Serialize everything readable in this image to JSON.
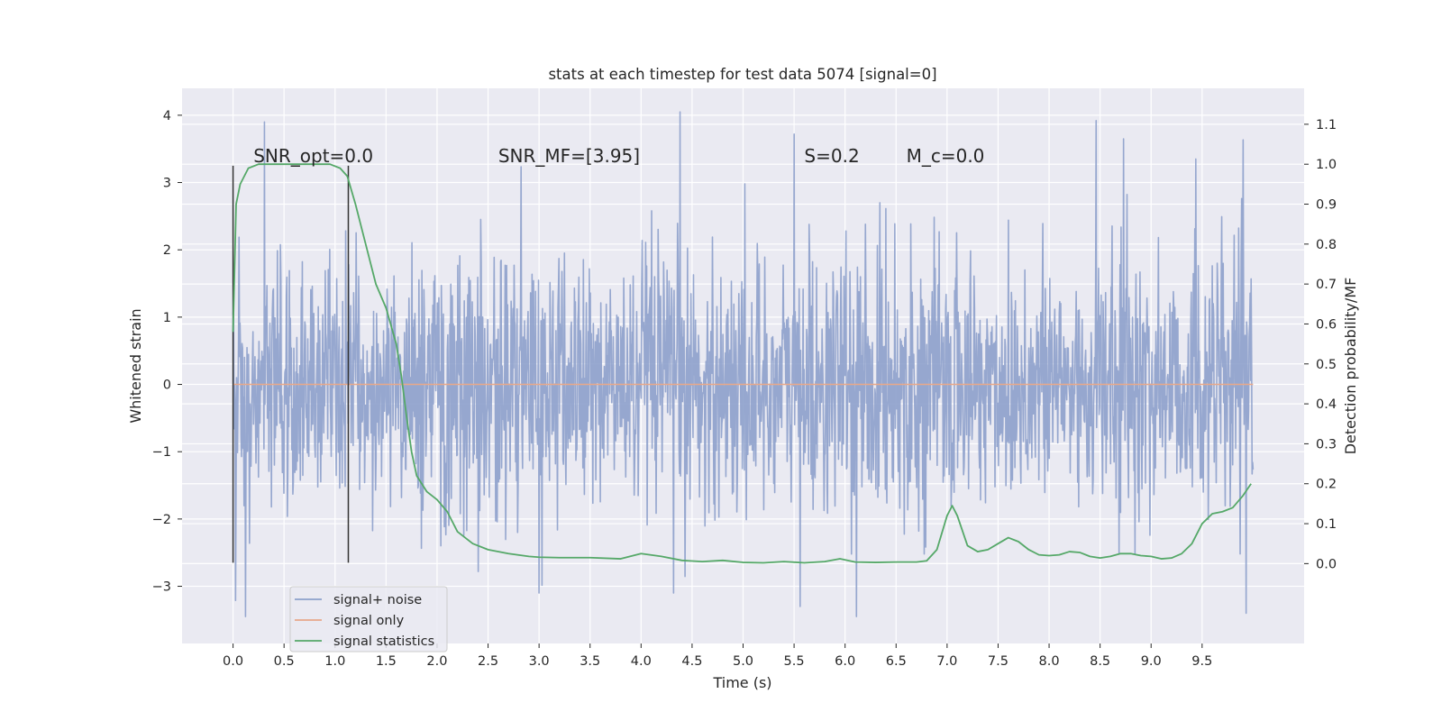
{
  "chart_data": {
    "type": "line",
    "title": "stats at each timestep for test data 5074 [signal=0]",
    "xlabel": "Time (s)",
    "ylabel": "Whitened strain",
    "y2label": "Detection probability/MF",
    "xlim": [
      -0.5,
      10.5
    ],
    "ylim": [
      -3.85,
      4.4
    ],
    "y2lim": [
      -0.2,
      1.19
    ],
    "x_ticks": [
      "0.0",
      "0.5",
      "1.0",
      "1.5",
      "2.0",
      "2.5",
      "3.0",
      "3.5",
      "4.0",
      "4.5",
      "5.0",
      "5.5",
      "6.0",
      "6.5",
      "7.0",
      "7.5",
      "8.0",
      "8.5",
      "9.0",
      "9.5"
    ],
    "y_ticks": [
      "−3",
      "−2",
      "−1",
      "0",
      "1",
      "2",
      "3",
      "4"
    ],
    "y2_ticks": [
      "0.0",
      "0.1",
      "0.2",
      "0.3",
      "0.4",
      "0.5",
      "0.6",
      "0.7",
      "0.8",
      "0.9",
      "1.0",
      "1.1"
    ],
    "grid": true,
    "legend_placement": "lower-left",
    "annotations": [
      {
        "text": "SNR_opt=0.0",
        "x": 0.2,
        "y": 3.3
      },
      {
        "text": "SNR_MF=[3.95]",
        "x": 2.6,
        "y": 3.3
      },
      {
        "text": "S=0.2",
        "x": 5.6,
        "y": 3.3
      },
      {
        "text": "M_c=0.0",
        "x": 6.6,
        "y": 3.3
      }
    ],
    "vlines": [
      {
        "x": 0.0,
        "ymin": -2.65,
        "ymax": 3.25
      },
      {
        "x": 1.13,
        "ymin": -2.65,
        "ymax": 3.25
      }
    ],
    "series": [
      {
        "name": "signal+ noise",
        "color": "#8da0cb",
        "axis": "left",
        "x_range": [
          0,
          10
        ],
        "samples": 2048,
        "envelope_typical": [
          -1.5,
          1.5
        ],
        "max": 4.05,
        "min": -3.45,
        "note_peaks": [
          {
            "x": 0.31,
            "y": 3.9
          },
          {
            "x": 4.38,
            "y": 4.05
          },
          {
            "x": 8.46,
            "y": 3.92
          },
          {
            "x": 5.5,
            "y": 3.72
          },
          {
            "x": 8.73,
            "y": 3.65
          },
          {
            "x": 9.44,
            "y": 3.35
          },
          {
            "x": 0.12,
            "y": -3.45
          },
          {
            "x": 6.11,
            "y": -3.45
          },
          {
            "x": 9.93,
            "y": -3.4
          },
          {
            "x": 5.56,
            "y": -3.3
          },
          {
            "x": 3.0,
            "y": -3.1
          },
          {
            "x": 4.32,
            "y": -3.1
          }
        ]
      },
      {
        "name": "signal only",
        "color": "#e8a88a",
        "axis": "left",
        "x": [
          0,
          10
        ],
        "y": [
          0,
          0
        ]
      },
      {
        "name": "signal statistics",
        "color": "#55a868",
        "axis": "right",
        "x": [
          0.0,
          0.03,
          0.07,
          0.15,
          0.25,
          0.4,
          0.6,
          0.8,
          0.95,
          1.05,
          1.12,
          1.2,
          1.3,
          1.4,
          1.5,
          1.6,
          1.65,
          1.7,
          1.75,
          1.8,
          1.9,
          2.0,
          2.1,
          2.2,
          2.35,
          2.5,
          2.7,
          2.9,
          3.0,
          3.2,
          3.5,
          3.8,
          4.0,
          4.2,
          4.4,
          4.6,
          4.8,
          5.0,
          5.2,
          5.4,
          5.6,
          5.8,
          5.95,
          6.1,
          6.3,
          6.5,
          6.7,
          6.8,
          6.9,
          7.0,
          7.05,
          7.1,
          7.2,
          7.3,
          7.4,
          7.5,
          7.6,
          7.7,
          7.8,
          7.9,
          8.0,
          8.1,
          8.2,
          8.3,
          8.4,
          8.5,
          8.6,
          8.7,
          8.8,
          8.9,
          9.0,
          9.1,
          9.2,
          9.3,
          9.4,
          9.5,
          9.6,
          9.7,
          9.8,
          9.9,
          9.98
        ],
        "y": [
          0.58,
          0.9,
          0.95,
          0.99,
          1.0,
          1.0,
          1.0,
          1.0,
          1.0,
          0.99,
          0.97,
          0.9,
          0.8,
          0.7,
          0.64,
          0.55,
          0.47,
          0.37,
          0.28,
          0.22,
          0.18,
          0.16,
          0.13,
          0.08,
          0.05,
          0.035,
          0.025,
          0.018,
          0.016,
          0.015,
          0.015,
          0.012,
          0.025,
          0.018,
          0.008,
          0.005,
          0.008,
          0.003,
          0.002,
          0.005,
          0.002,
          0.005,
          0.012,
          0.004,
          0.003,
          0.004,
          0.004,
          0.007,
          0.035,
          0.12,
          0.145,
          0.12,
          0.045,
          0.03,
          0.035,
          0.05,
          0.065,
          0.055,
          0.035,
          0.022,
          0.02,
          0.022,
          0.03,
          0.028,
          0.018,
          0.014,
          0.018,
          0.025,
          0.025,
          0.02,
          0.018,
          0.012,
          0.014,
          0.025,
          0.05,
          0.1,
          0.125,
          0.13,
          0.14,
          0.17,
          0.2
        ]
      }
    ]
  }
}
